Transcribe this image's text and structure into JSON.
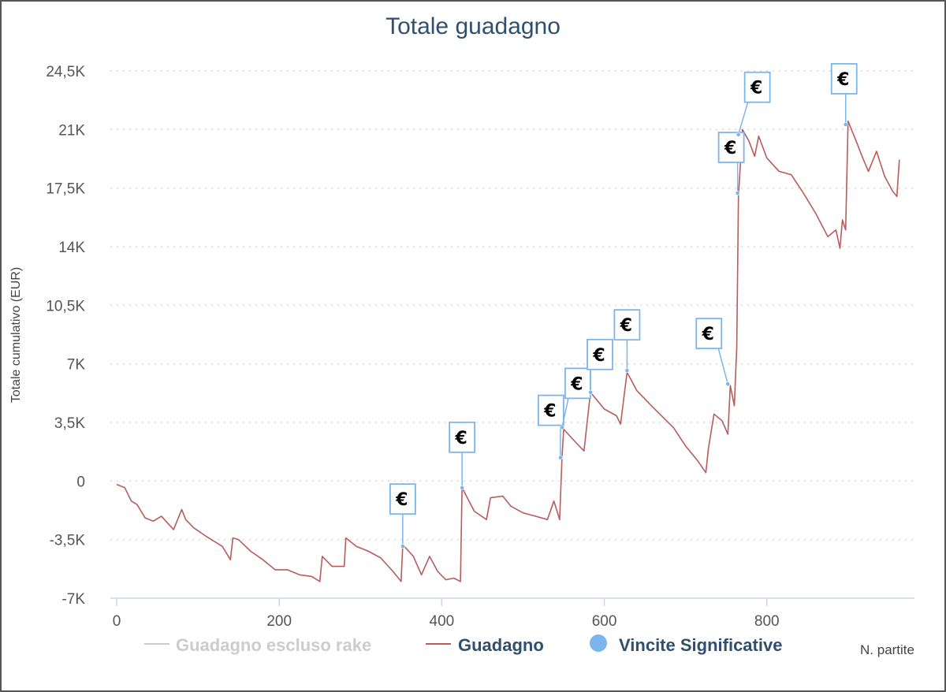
{
  "chart_data": {
    "type": "line",
    "title": "Totale guadagno",
    "xlabel": "N. partite",
    "ylabel": "Totale cumulativo (EUR)",
    "xlim": [
      0,
      970
    ],
    "ylim": [
      -7000,
      24500
    ],
    "x_ticks": [
      0,
      200,
      400,
      600,
      800
    ],
    "x_tick_labels": [
      "0",
      "200",
      "400",
      "600",
      "800"
    ],
    "y_ticks": [
      -7000,
      -3500,
      0,
      3500,
      7000,
      10500,
      14000,
      17500,
      21000,
      24500
    ],
    "y_tick_labels": [
      "-7K",
      "-3,5K",
      "0",
      "3,5K",
      "7K",
      "10,5K",
      "14K",
      "17,5K",
      "21K",
      "24,5K"
    ],
    "grid": "horizontal-dotted",
    "legend_position": "bottom",
    "legend": [
      {
        "name": "Guadagno escluso rake",
        "color": "#cccccc",
        "marker": "line",
        "muted": true
      },
      {
        "name": "Guadagno",
        "color": "#b85c5c",
        "marker": "line",
        "muted": false
      },
      {
        "name": "Vincite Significative",
        "color": "#7cb5ec",
        "marker": "circle",
        "muted": false
      }
    ],
    "series": [
      {
        "name": "Guadagno",
        "color": "#b85c5c",
        "points": [
          [
            0,
            -200
          ],
          [
            10,
            -400
          ],
          [
            18,
            -1200
          ],
          [
            25,
            -1400
          ],
          [
            35,
            -2200
          ],
          [
            45,
            -2400
          ],
          [
            55,
            -2100
          ],
          [
            70,
            -2900
          ],
          [
            80,
            -1700
          ],
          [
            85,
            -2300
          ],
          [
            95,
            -2800
          ],
          [
            110,
            -3300
          ],
          [
            130,
            -3900
          ],
          [
            140,
            -4700
          ],
          [
            143,
            -3400
          ],
          [
            150,
            -3500
          ],
          [
            165,
            -4200
          ],
          [
            180,
            -4700
          ],
          [
            195,
            -5300
          ],
          [
            210,
            -5300
          ],
          [
            225,
            -5600
          ],
          [
            240,
            -5700
          ],
          [
            250,
            -6000
          ],
          [
            253,
            -4500
          ],
          [
            265,
            -5100
          ],
          [
            280,
            -5100
          ],
          [
            282,
            -3400
          ],
          [
            295,
            -3900
          ],
          [
            310,
            -4200
          ],
          [
            325,
            -4600
          ],
          [
            340,
            -5400
          ],
          [
            350,
            -6000
          ],
          [
            352,
            -3800
          ],
          [
            365,
            -4500
          ],
          [
            375,
            -5600
          ],
          [
            385,
            -4500
          ],
          [
            395,
            -5400
          ],
          [
            405,
            -5900
          ],
          [
            415,
            -5800
          ],
          [
            423,
            -6000
          ],
          [
            425,
            -400
          ],
          [
            440,
            -1800
          ],
          [
            455,
            -2300
          ],
          [
            460,
            -1000
          ],
          [
            475,
            -900
          ],
          [
            485,
            -1500
          ],
          [
            500,
            -1900
          ],
          [
            515,
            -2100
          ],
          [
            530,
            -2300
          ],
          [
            538,
            -1200
          ],
          [
            545,
            -2300
          ],
          [
            548,
            1400
          ],
          [
            550,
            3100
          ],
          [
            565,
            2300
          ],
          [
            575,
            1800
          ],
          [
            583,
            5300
          ],
          [
            600,
            4300
          ],
          [
            615,
            3900
          ],
          [
            620,
            3400
          ],
          [
            628,
            6500
          ],
          [
            640,
            5400
          ],
          [
            660,
            4400
          ],
          [
            685,
            3200
          ],
          [
            700,
            2100
          ],
          [
            715,
            1200
          ],
          [
            725,
            500
          ],
          [
            728,
            1900
          ],
          [
            735,
            4000
          ],
          [
            745,
            3600
          ],
          [
            752,
            2800
          ],
          [
            755,
            5700
          ],
          [
            760,
            4500
          ],
          [
            763,
            8000
          ],
          [
            765,
            17000
          ],
          [
            770,
            21000
          ],
          [
            778,
            20300
          ],
          [
            785,
            19400
          ],
          [
            790,
            20600
          ],
          [
            800,
            19300
          ],
          [
            815,
            18500
          ],
          [
            830,
            18300
          ],
          [
            845,
            17200
          ],
          [
            860,
            16000
          ],
          [
            875,
            14600
          ],
          [
            885,
            15000
          ],
          [
            890,
            13900
          ],
          [
            893,
            15600
          ],
          [
            897,
            15000
          ],
          [
            900,
            21500
          ],
          [
            910,
            20300
          ],
          [
            918,
            19300
          ],
          [
            925,
            18500
          ],
          [
            935,
            19700
          ],
          [
            945,
            18200
          ],
          [
            955,
            17300
          ],
          [
            960,
            17000
          ],
          [
            963,
            19200
          ]
        ]
      }
    ],
    "markers": [
      {
        "label": "€",
        "x": 352,
        "y": -3900
      },
      {
        "label": "€",
        "x": 425,
        "y": -400
      },
      {
        "label": "€",
        "x": 546,
        "y": 1400
      },
      {
        "label": "€",
        "x": 548,
        "y": 3200
      },
      {
        "label": "€",
        "x": 583,
        "y": 5300
      },
      {
        "label": "€",
        "x": 628,
        "y": 6600
      },
      {
        "label": "€",
        "x": 752,
        "y": 5800
      },
      {
        "label": "€",
        "x": 764,
        "y": 17200
      },
      {
        "label": "€",
        "x": 765,
        "y": 20700
      },
      {
        "label": "€",
        "x": 897,
        "y": 21300
      }
    ]
  }
}
